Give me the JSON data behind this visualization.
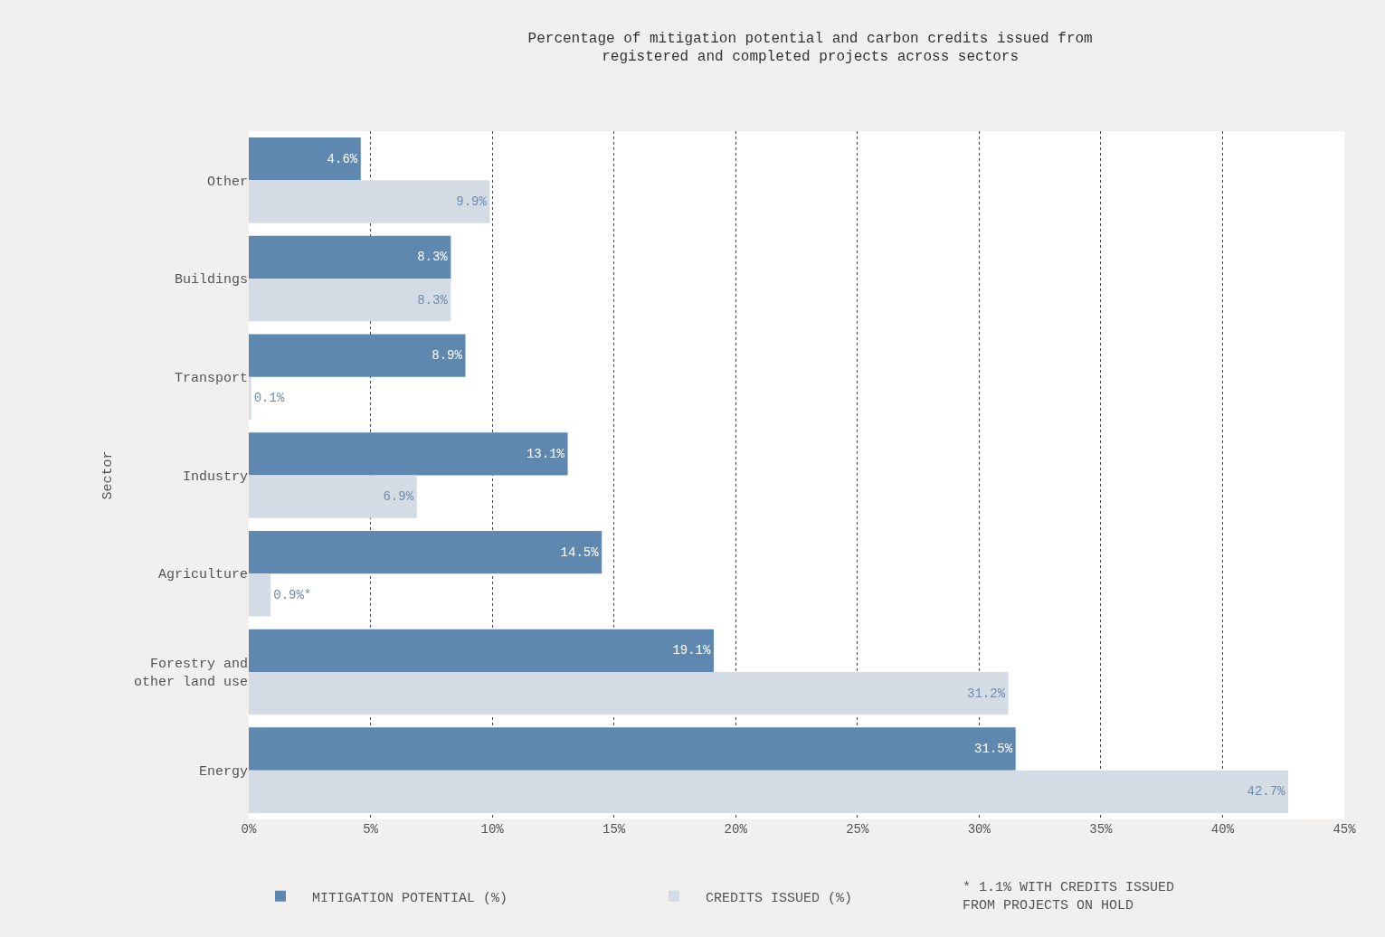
{
  "chart_data": {
    "type": "bar",
    "orientation": "horizontal",
    "title": "Percentage of mitigation potential and carbon credits issued from registered and completed projects across sectors",
    "ylabel": "Sector",
    "categories": [
      "Other",
      "Buildings",
      "Transport",
      "Industry",
      "Agriculture",
      "Forestry and other land use",
      "Energy"
    ],
    "series": [
      {
        "name": "MITIGATION POTENTIAL (%)",
        "color": "#5f88b0",
        "values": [
          4.6,
          8.3,
          8.9,
          13.1,
          14.5,
          19.1,
          31.5
        ],
        "value_labels": [
          "4.6%",
          "8.3%",
          "8.9%",
          "13.1%",
          "14.5%",
          "19.1%",
          "31.5%"
        ]
      },
      {
        "name": "CREDITS ISSUED (%)",
        "color": "#d3dbe5",
        "values": [
          9.9,
          8.3,
          0.1,
          6.9,
          0.9,
          31.2,
          42.7
        ],
        "value_labels": [
          "9.9%",
          "8.3%",
          "0.1%",
          "6.9%",
          "0.9%*",
          "31.2%",
          "42.7%"
        ]
      }
    ],
    "xlim": [
      0,
      45
    ],
    "xticks": [
      {
        "value": 0,
        "label": "0%"
      },
      {
        "value": 5,
        "label": "5%"
      },
      {
        "value": 10,
        "label": "10%"
      },
      {
        "value": 15,
        "label": "15%"
      },
      {
        "value": 20,
        "label": "20%"
      },
      {
        "value": 25,
        "label": "25%"
      },
      {
        "value": 30,
        "label": "30%"
      },
      {
        "value": 35,
        "label": "35%"
      },
      {
        "value": 40,
        "label": "40%"
      },
      {
        "value": 45,
        "label": "45%"
      }
    ],
    "grid": "x",
    "legend": "bottom",
    "annotations": [
      "* 1.1% WITH CREDITS ISSUED FROM PROJECTS ON HOLD"
    ]
  }
}
